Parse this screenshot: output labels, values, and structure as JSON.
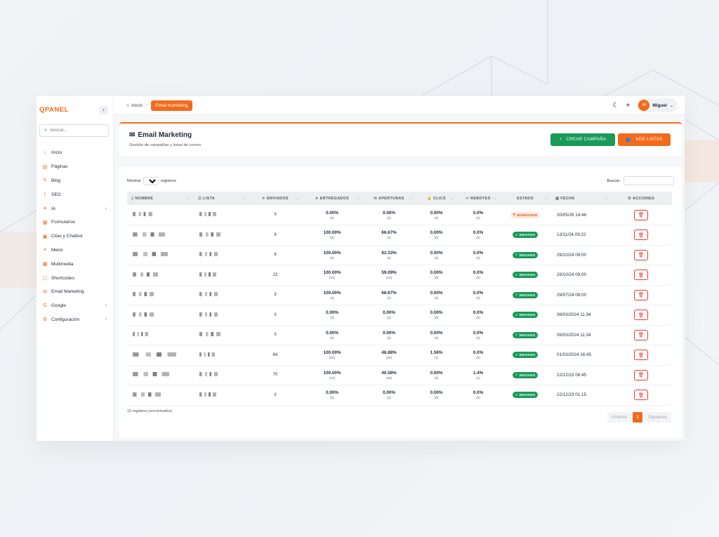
{
  "brand": {
    "logo": "QPANEL",
    "collapse": "‹"
  },
  "sidebar": {
    "search_placeholder": "Buscar...",
    "items": [
      {
        "label": "Inicio",
        "icon": "home-icon",
        "glyph": "⌂",
        "chevron": false
      },
      {
        "label": "Páginas",
        "icon": "page-icon",
        "glyph": "▤",
        "chevron": false
      },
      {
        "label": "Blog",
        "icon": "blog-icon",
        "glyph": "✎",
        "chevron": false
      },
      {
        "label": "SEO",
        "icon": "chart-icon",
        "glyph": "⌇",
        "chevron": false
      },
      {
        "label": "IA",
        "icon": "sparkle-icon",
        "glyph": "✦",
        "chevron": true
      },
      {
        "label": "Formularios",
        "icon": "form-icon",
        "glyph": "▦",
        "chevron": false
      },
      {
        "label": "Citas y Chatbot",
        "icon": "calendar-icon",
        "glyph": "▣",
        "chevron": false
      },
      {
        "label": "Menú",
        "icon": "menu-icon",
        "glyph": "≡",
        "chevron": false
      },
      {
        "label": "Multimedia",
        "icon": "media-icon",
        "glyph": "▩",
        "chevron": false
      },
      {
        "label": "Shortcodes",
        "icon": "code-icon",
        "glyph": "▢",
        "chevron": false
      },
      {
        "label": "Email Marketing",
        "icon": "email-icon",
        "glyph": "✉",
        "chevron": false
      },
      {
        "label": "Google",
        "icon": "google-icon",
        "glyph": "G",
        "chevron": true
      },
      {
        "label": "Configuración",
        "icon": "gear-icon",
        "glyph": "⚙",
        "chevron": true
      }
    ]
  },
  "topbar": {
    "home": "Inicio",
    "active_crumb": "Email marketing",
    "user": {
      "initial": "M",
      "name": "Miguel"
    }
  },
  "header": {
    "title": "Email Marketing",
    "subtitle": "Gestión de campañas y listas de correo.",
    "create_btn": "CREAR CAMPAÑA",
    "lists_btn": "VER LISTAS"
  },
  "table_controls": {
    "show_prefix": "Mostrar",
    "show_value": "10",
    "show_suffix": "registros",
    "search_label": "Buscar:"
  },
  "columns": [
    "NOMBRE",
    "LISTA",
    "ENVIADOS",
    "ENTREGADOS",
    "APERTURAS",
    "CLICS",
    "REBOTES",
    "ESTADO",
    "FECHA",
    "ACCIONES"
  ],
  "rows": [
    {
      "sent": "0",
      "delivered": "0.00%",
      "delivered_n": "(0)",
      "opens": "0.00%",
      "opens_n": "(0)",
      "clicks": "0.00%",
      "clicks_n": "(0)",
      "bounces": "0.0%",
      "bounces_n": "(0)",
      "status": "BORRADOR",
      "status_type": "draft",
      "date": "20/05/26 14:46"
    },
    {
      "sent": "6",
      "delivered": "100.00%",
      "delivered_n": "(6)",
      "opens": "66.67%",
      "opens_n": "(4)",
      "clicks": "0.00%",
      "clicks_n": "(0)",
      "bounces": "0.0%",
      "bounces_n": "(0)",
      "status": "ENVIADO",
      "status_type": "sent",
      "date": "13/11/24 09:22"
    },
    {
      "sent": "6",
      "delivered": "100.00%",
      "delivered_n": "(6)",
      "opens": "83.33%",
      "opens_n": "(5)",
      "clicks": "0.00%",
      "clicks_n": "(0)",
      "bounces": "0.0%",
      "bounces_n": "(0)",
      "status": "ENVIADO",
      "status_type": "sent",
      "date": "29/10/24 09:00"
    },
    {
      "sent": "22",
      "delivered": "100.00%",
      "delivered_n": "(22)",
      "opens": "59.09%",
      "opens_n": "(13)",
      "clicks": "0.00%",
      "clicks_n": "(0)",
      "bounces": "0.0%",
      "bounces_n": "(0)",
      "status": "ENVIADO",
      "status_type": "sent",
      "date": "29/10/24 09:00"
    },
    {
      "sent": "3",
      "delivered": "100.00%",
      "delivered_n": "(3)",
      "opens": "66.67%",
      "opens_n": "(2)",
      "clicks": "0.00%",
      "clicks_n": "(0)",
      "bounces": "0.0%",
      "bounces_n": "(0)",
      "status": "ENVIADO",
      "status_type": "sent",
      "date": "29/07/24 08:00"
    },
    {
      "sent": "0",
      "delivered": "0.00%",
      "delivered_n": "(0)",
      "opens": "0.00%",
      "opens_n": "(2)",
      "clicks": "0.00%",
      "clicks_n": "(0)",
      "bounces": "0.0%",
      "bounces_n": "(0)",
      "status": "ENVIADO",
      "status_type": "sent",
      "date": "06/03/2024 11:34"
    },
    {
      "sent": "0",
      "delivered": "0.00%",
      "delivered_n": "(0)",
      "opens": "0.00%",
      "opens_n": "(0)",
      "clicks": "0.00%",
      "clicks_n": "(0)",
      "bounces": "0.0%",
      "bounces_n": "(0)",
      "status": "ENVIADO",
      "status_type": "sent",
      "date": "06/03/2024 11:34"
    },
    {
      "sent": "64",
      "delivered": "100.00%",
      "delivered_n": "(64)",
      "opens": "46.88%",
      "opens_n": "(30)",
      "clicks": "1.56%",
      "clicks_n": "(1)",
      "bounces": "0.0%",
      "bounces_n": "(0)",
      "status": "ENVIADO",
      "status_type": "sent",
      "date": "01/03/2024 16:45"
    },
    {
      "sent": "70",
      "delivered": "100.00%",
      "delivered_n": "(70)",
      "opens": "40.58%",
      "opens_n": "(28)",
      "clicks": "0.00%",
      "clicks_n": "(0)",
      "bounces": "1.4%",
      "bounces_n": "(1)",
      "status": "ENVIADO",
      "status_type": "sent",
      "date": "22/12/23 08:45"
    },
    {
      "sent": "0",
      "delivered": "0.00%",
      "delivered_n": "(0)",
      "opens": "0.00%",
      "opens_n": "(2)",
      "clicks": "0.00%",
      "clicks_n": "(0)",
      "bounces": "0.0%",
      "bounces_n": "(0)",
      "status": "ENVIADO",
      "status_type": "sent",
      "date": "22/12/23 01:15"
    }
  ],
  "footer": {
    "records": "10 registros (encontrados)",
    "prev": "Anterior",
    "current": "1",
    "next": "Siguiente"
  },
  "colors": {
    "accent": "#f26b1d",
    "success": "#1a9a5a",
    "danger": "#e53935"
  }
}
